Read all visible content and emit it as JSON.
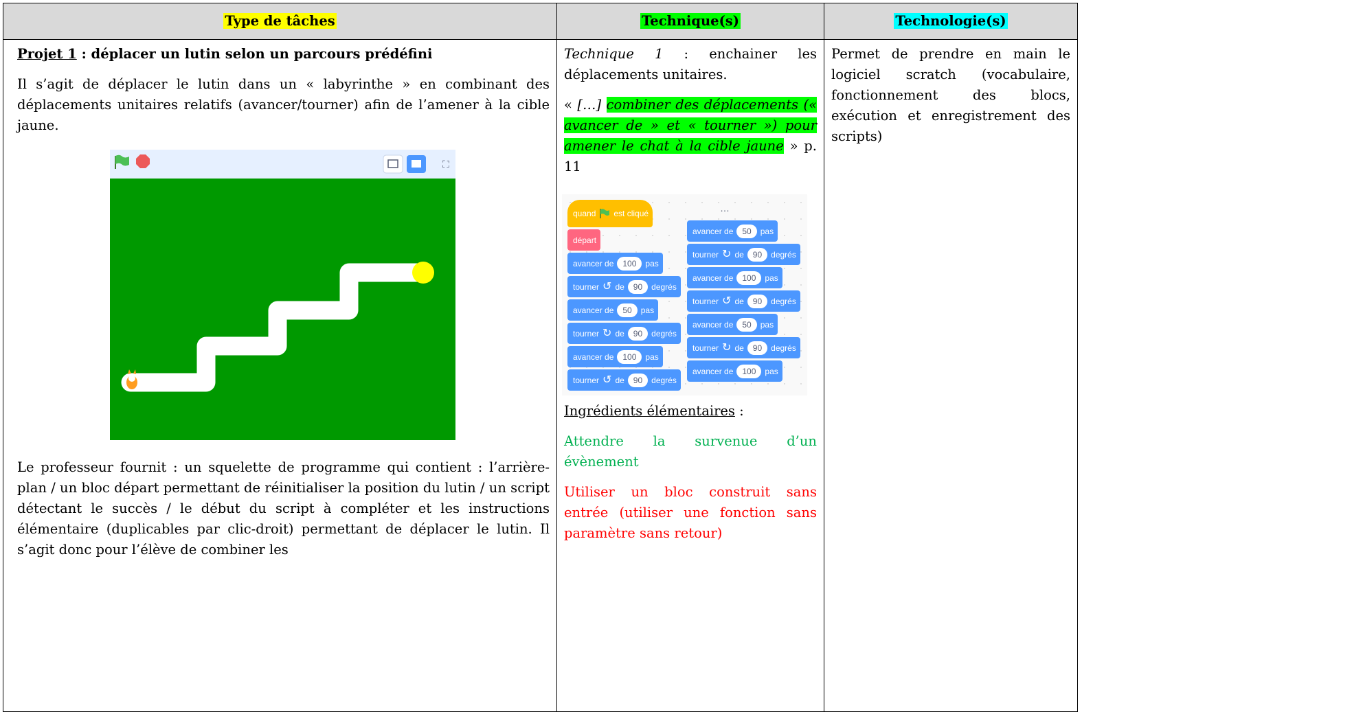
{
  "header": {
    "col1": "Type de tâches",
    "col2": "Technique(s)",
    "col3": "Technologie(s)",
    "col1_highlight": "#ffff00",
    "col2_highlight": "#00ff00",
    "col3_highlight": "#00ffff"
  },
  "column_1": {
    "title_underlined": "Projet 1",
    "title_rest": " : déplacer un lutin selon un parcours prédéfini",
    "intro": "Il s’agit de déplacer le lutin dans un « labyrinthe » en combinant des déplacements unitaires relatifs (avancer/tourner) afin de l’amener à la cible jaune.",
    "teacher_text": "Le professeur fournit : un squelette de programme qui contient : l’arrière-plan / un bloc départ permettant de réinitialiser la position du lutin / un script détectant le succès / le début du script à compléter et les instructions élémentaire (duplicables par clic-droit) permettant de déplacer le lutin. Il s’agit donc pour l’élève de combiner les"
  },
  "column_2": {
    "technique_label": "Technique 1",
    "technique_text": " : enchainer les déplacements unitaires.",
    "quote_open": "« ",
    "quote_ellipsis": "[…]",
    "quote_highlighted": "combiner des déplacements (« avancer de » et « tourner ») pour amener le chat à la cible jaune",
    "quote_close": " » p. 11",
    "quote_highlight": "#00ff00",
    "scripts": [
      {
        "blocks": [
          {
            "shape": "hat",
            "color": "#ffbf00",
            "label": "quand",
            "label2": "est cliqué"
          },
          {
            "color": "#ff6680",
            "label": "départ"
          },
          {
            "color": "#4c97ff",
            "label": "avancer de",
            "input": "100",
            "suffix": "pas"
          },
          {
            "color": "#4c97ff",
            "label": "tourner",
            "icon": "↺",
            "label2": "de",
            "input": "90",
            "suffix": "degrés"
          },
          {
            "color": "#4c97ff",
            "label": "avancer de",
            "input": "50",
            "suffix": "pas"
          },
          {
            "color": "#4c97ff",
            "label": "tourner",
            "icon": "↻",
            "label2": "de",
            "input": "90",
            "suffix": "degrés"
          },
          {
            "color": "#4c97ff",
            "label": "avancer de",
            "input": "100",
            "suffix": "pas"
          },
          {
            "color": "#4c97ff",
            "label": "tourner",
            "icon": "↺",
            "label2": "de",
            "input": "90",
            "suffix": "degrés"
          }
        ]
      },
      {
        "ellipsis": "…",
        "blocks": [
          {
            "color": "#4c97ff",
            "label": "avancer de",
            "input": "50",
            "suffix": "pas"
          },
          {
            "color": "#4c97ff",
            "label": "tourner",
            "icon": "↻",
            "label2": "de",
            "input": "90",
            "suffix": "degrés"
          },
          {
            "color": "#4c97ff",
            "label": "avancer de",
            "input": "100",
            "suffix": "pas"
          },
          {
            "color": "#4c97ff",
            "label": "tourner",
            "icon": "↺",
            "label2": "de",
            "input": "90",
            "suffix": "degrés"
          },
          {
            "color": "#4c97ff",
            "label": "avancer de",
            "input": "50",
            "suffix": "pas"
          },
          {
            "color": "#4c97ff",
            "label": "tourner",
            "icon": "↻",
            "label2": "de",
            "input": "90",
            "suffix": "degrés"
          },
          {
            "color": "#4c97ff",
            "label": "avancer de",
            "input": "100",
            "suffix": "pas"
          }
        ]
      }
    ],
    "ingredients_title": "Ingrédients élémentaires",
    "ingredients_colon": " :",
    "ingredient_1": "Attendre la survenue d’un évènement",
    "ingredient_1_color": "#00b050",
    "ingredient_2": "Utiliser un bloc construit sans entrée (utiliser une fonction sans paramètre sans retour)",
    "ingredient_2_color": "#ff0000"
  },
  "column_3": {
    "text": "Permet de prendre en main le logiciel scratch (vocabulaire, fonctionnement des blocs, exécution et enregistrement des scripts)"
  }
}
